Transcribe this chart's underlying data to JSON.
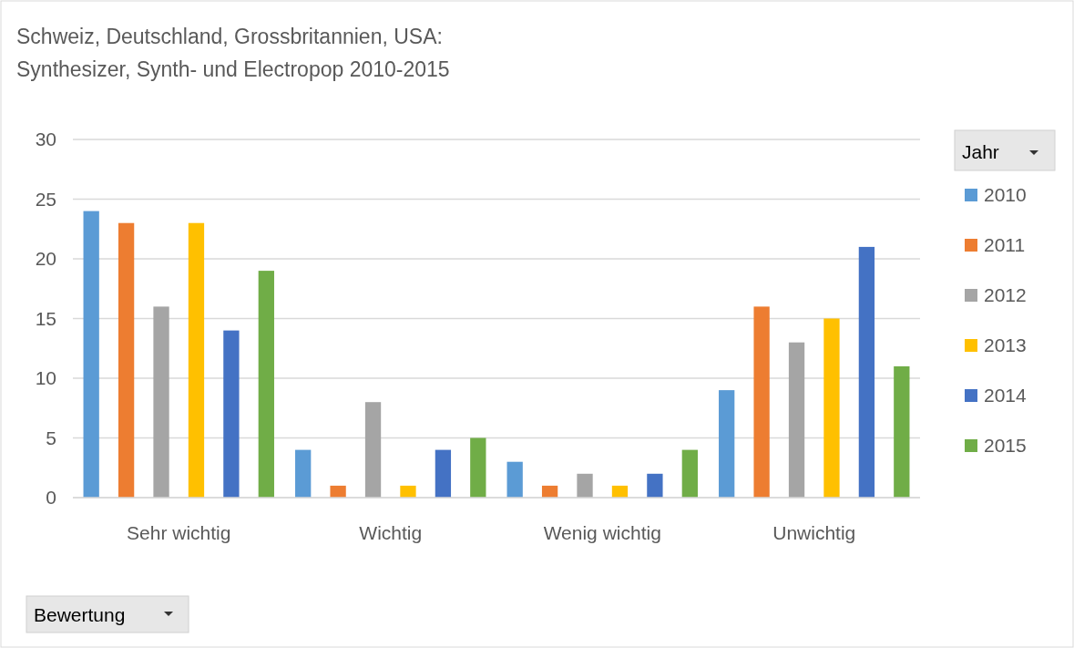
{
  "chart_data": {
    "type": "bar",
    "title": "Schweiz, Deutschland, Grossbritannien, USA:\nSynthesizer, Synth- und Electropop 2010-2015",
    "xlabel": "Bewertung",
    "legend_title": "Jahr",
    "categories": [
      "Sehr wichtig",
      "Wichtig",
      "Wenig wichtig",
      "Unwichtig"
    ],
    "series": [
      {
        "name": "2010",
        "color": "#5b9bd5",
        "values": [
          24,
          4,
          3,
          9
        ]
      },
      {
        "name": "2011",
        "color": "#ed7d31",
        "values": [
          23,
          1,
          1,
          16
        ]
      },
      {
        "name": "2012",
        "color": "#a5a5a5",
        "values": [
          16,
          8,
          2,
          13
        ]
      },
      {
        "name": "2013",
        "color": "#ffc000",
        "values": [
          23,
          1,
          1,
          15
        ]
      },
      {
        "name": "2014",
        "color": "#4472c4",
        "values": [
          14,
          4,
          2,
          21
        ]
      },
      {
        "name": "2015",
        "color": "#70ad47",
        "values": [
          19,
          5,
          4,
          11
        ]
      }
    ],
    "ylim": [
      0,
      30
    ],
    "yticks": [
      0,
      5,
      10,
      15,
      20,
      25,
      30
    ],
    "grid": "y",
    "legend": "right"
  }
}
